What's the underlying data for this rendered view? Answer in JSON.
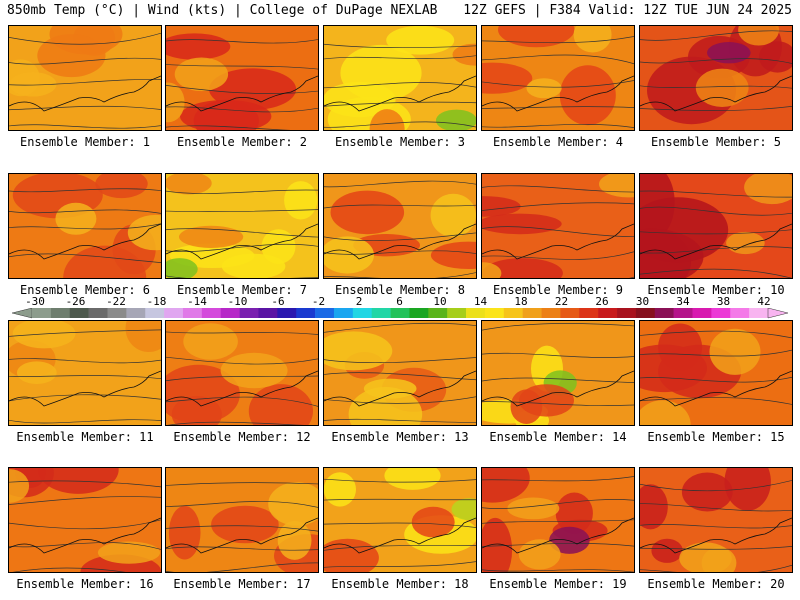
{
  "header": {
    "left": "850mb Temp (°C) | Wind (kts) | College of DuPage NEXLAB",
    "right": "12Z GEFS | F384 Valid: 12Z TUE JUN 24 2025"
  },
  "panel_label_prefix": "Ensemble Member: ",
  "members": [
    {
      "label": "Ensemble Member: 1",
      "base": "#f2a21a",
      "patches": [
        [
          "#ee7a14",
          0.35
        ],
        [
          "#f6b21c",
          0.25
        ]
      ]
    },
    {
      "label": "Ensemble Member: 2",
      "base": "#ec6e12",
      "patches": [
        [
          "#d8281a",
          0.55
        ],
        [
          "#f2a21a",
          0.3
        ]
      ]
    },
    {
      "label": "Ensemble Member: 3",
      "base": "#f4b41c",
      "patches": [
        [
          "#fbe418",
          0.45
        ],
        [
          "#7ec21e",
          0.12
        ],
        [
          "#ee7a14",
          0.25
        ]
      ]
    },
    {
      "label": "Ensemble Member: 4",
      "base": "#ee8614",
      "patches": [
        [
          "#e44416",
          0.4
        ],
        [
          "#f4b21c",
          0.25
        ]
      ]
    },
    {
      "label": "Ensemble Member: 5",
      "base": "#e45418",
      "patches": [
        [
          "#c01a1c",
          0.5
        ],
        [
          "#8a1056",
          0.12
        ],
        [
          "#ee8614",
          0.25
        ]
      ]
    },
    {
      "label": "Ensemble Member: 6",
      "base": "#ee7a14",
      "patches": [
        [
          "#e24818",
          0.5
        ],
        [
          "#f4b21c",
          0.2
        ]
      ]
    },
    {
      "label": "Ensemble Member: 7",
      "base": "#f4c21c",
      "patches": [
        [
          "#fbe418",
          0.45
        ],
        [
          "#ee8614",
          0.25
        ],
        [
          "#7ec21e",
          0.05
        ]
      ]
    },
    {
      "label": "Ensemble Member: 8",
      "base": "#f0961a",
      "patches": [
        [
          "#e44416",
          0.35
        ],
        [
          "#f6c41c",
          0.3
        ]
      ]
    },
    {
      "label": "Ensemble Member: 9",
      "base": "#e96018",
      "patches": [
        [
          "#d42a1a",
          0.4
        ],
        [
          "#f2a21a",
          0.3
        ]
      ]
    },
    {
      "label": "Ensemble Member: 10",
      "base": "#e4481a",
      "patches": [
        [
          "#b4141c",
          0.55
        ],
        [
          "#f0961a",
          0.25
        ]
      ]
    },
    {
      "label": "Ensemble Member: 11",
      "base": "#f2a21a",
      "patches": [
        [
          "#ee8614",
          0.3
        ],
        [
          "#f6b41c",
          0.25
        ]
      ]
    },
    {
      "label": "Ensemble Member: 12",
      "base": "#ee7e14",
      "patches": [
        [
          "#e24418",
          0.4
        ],
        [
          "#f2a21a",
          0.3
        ]
      ]
    },
    {
      "label": "Ensemble Member: 13",
      "base": "#f0961a",
      "patches": [
        [
          "#e85a16",
          0.3
        ],
        [
          "#f6c41c",
          0.35
        ]
      ]
    },
    {
      "label": "Ensemble Member: 14",
      "base": "#f0961a",
      "patches": [
        [
          "#fbe418",
          0.35
        ],
        [
          "#7ec21e",
          0.12
        ],
        [
          "#e24418",
          0.3
        ]
      ]
    },
    {
      "label": "Ensemble Member: 15",
      "base": "#ec6e12",
      "patches": [
        [
          "#d42a1a",
          0.4
        ],
        [
          "#f2a21a",
          0.3
        ]
      ]
    },
    {
      "label": "Ensemble Member: 16",
      "base": "#ee7614",
      "patches": [
        [
          "#d42a1a",
          0.45
        ],
        [
          "#f2a21a",
          0.3
        ]
      ]
    },
    {
      "label": "Ensemble Member: 17",
      "base": "#ee8614",
      "patches": [
        [
          "#e24418",
          0.4
        ],
        [
          "#f4b21c",
          0.25
        ]
      ]
    },
    {
      "label": "Ensemble Member: 18",
      "base": "#f2a21a",
      "patches": [
        [
          "#fbe418",
          0.35
        ],
        [
          "#b8d61e",
          0.1
        ],
        [
          "#e44416",
          0.25
        ]
      ]
    },
    {
      "label": "Ensemble Member: 19",
      "base": "#ee7614",
      "patches": [
        [
          "#d42a1a",
          0.45
        ],
        [
          "#8a1056",
          0.08
        ],
        [
          "#f2a21a",
          0.3
        ]
      ]
    },
    {
      "label": "Ensemble Member: 20",
      "base": "#e96018",
      "patches": [
        [
          "#c81e1c",
          0.45
        ],
        [
          "#f2a21a",
          0.3
        ]
      ]
    }
  ],
  "colorbar": {
    "ticks": [
      "-30",
      "-26",
      "-22",
      "-18",
      "-14",
      "-10",
      "-6",
      "-2",
      "2",
      "6",
      "10",
      "14",
      "18",
      "22",
      "26",
      "30",
      "34",
      "38",
      "42"
    ],
    "colors": [
      "#8c9c8c",
      "#6e7e6e",
      "#4e5a4e",
      "#6a6a6a",
      "#8a8a8a",
      "#a6a6b6",
      "#c6c6e0",
      "#e0a6f0",
      "#e07ae8",
      "#d44adc",
      "#b628c8",
      "#7a20b0",
      "#5a14a4",
      "#2a18b0",
      "#1a3ad0",
      "#1a6ae6",
      "#1aa6f0",
      "#22d6e4",
      "#22d6a6",
      "#22c25a",
      "#1aa622",
      "#5ab41a",
      "#a6ce1a",
      "#ece01a",
      "#fbe41a",
      "#f6c41a",
      "#f0a01a",
      "#ec8016",
      "#e65a16",
      "#dc3418",
      "#c81a1c",
      "#a8121e",
      "#86101e",
      "#8a1056",
      "#b4148a",
      "#d81ab0",
      "#ec3ad6",
      "#f47ae8",
      "#f8b4f0"
    ]
  }
}
